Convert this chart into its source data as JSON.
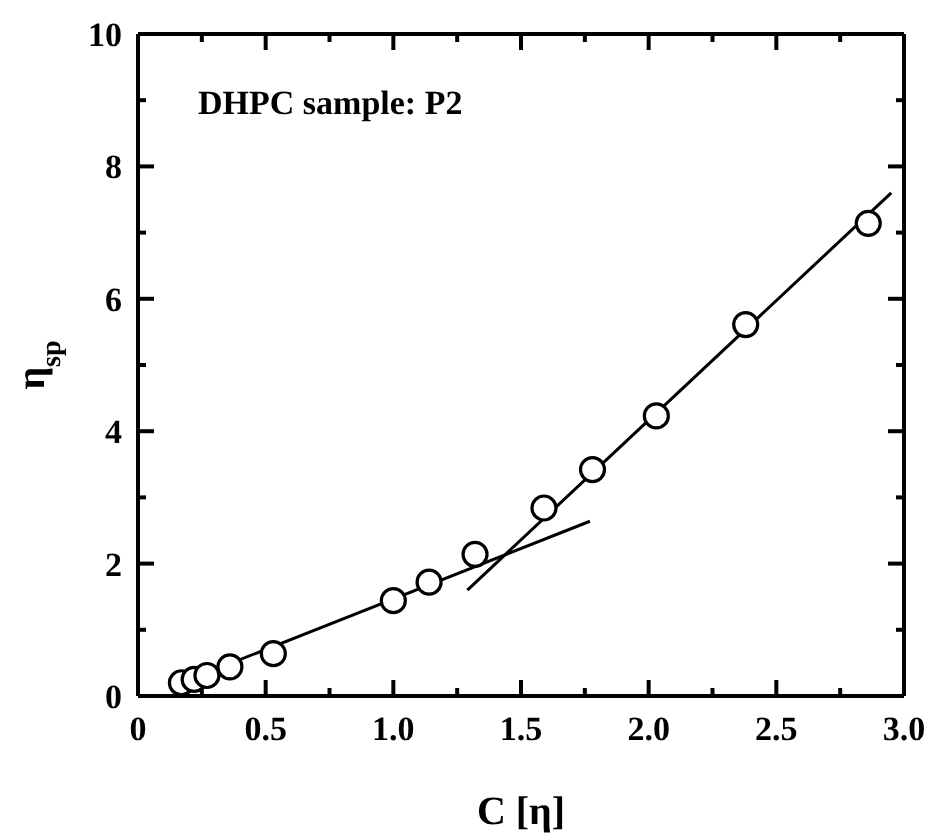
{
  "chart_data": {
    "type": "scatter",
    "xlabel": "C [η]",
    "ylabel": "η$_{sp}$",
    "annotations": [
      "DHPC sample: P2"
    ],
    "xlim": [
      0,
      3
    ],
    "ylim": [
      0,
      10
    ],
    "xticks": [
      0,
      {
        "value": 0.25,
        "label": null
      },
      {
        "value": 0.5,
        "label": "0.5"
      },
      {
        "value": 0.75,
        "label": null
      },
      {
        "value": 1,
        "label": "1.0"
      },
      {
        "value": 1.25,
        "label": null
      },
      {
        "value": 1.5,
        "label": "1.5"
      },
      {
        "value": 1.75,
        "label": null
      },
      {
        "value": 2,
        "label": "2.0"
      },
      {
        "value": 2.25,
        "label": null
      },
      {
        "value": 2.5,
        "label": "2.5"
      },
      {
        "value": 2.75,
        "label": null
      },
      {
        "value": 3,
        "label": "3.0"
      }
    ],
    "yticks": [
      0,
      {
        "value": 1,
        "label": null
      },
      2,
      {
        "value": 3,
        "label": null
      },
      4,
      {
        "value": 5,
        "label": null
      },
      6,
      {
        "value": 7,
        "label": null
      },
      8,
      {
        "value": 9,
        "label": null
      },
      10
    ],
    "grid": false,
    "legend": false,
    "series": [
      {
        "marker": "circle",
        "color": "#000000",
        "x": [
          0.17,
          0.22,
          0.27,
          0.36,
          0.53,
          1.0,
          1.14,
          1.32,
          1.59,
          1.78,
          2.03,
          2.38,
          2.86
        ],
        "values": [
          0.2,
          0.25,
          0.31,
          0.44,
          0.64,
          1.44,
          1.72,
          2.14,
          2.84,
          3.42,
          4.23,
          5.61,
          7.14
        ]
      },
      {
        "type": "line",
        "marker": "none",
        "color": "#000000",
        "x": [
          0.15,
          1.77
        ],
        "values": [
          0.17,
          2.64
        ]
      },
      {
        "type": "line",
        "marker": "none",
        "color": "#000000",
        "x": [
          1.29,
          2.95
        ],
        "values": [
          1.6,
          7.6
        ]
      }
    ]
  }
}
